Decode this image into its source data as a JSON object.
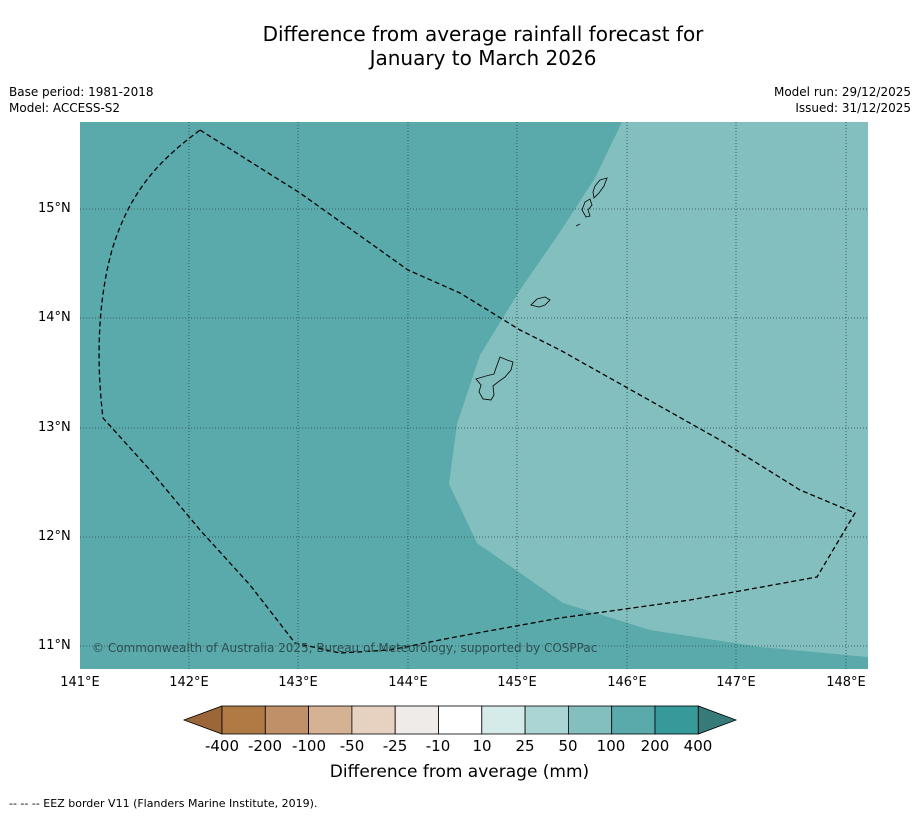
{
  "title": {
    "line1": "Difference from average rainfall forecast for",
    "line2": "January to March 2026"
  },
  "meta": {
    "base_period": "Base period: 1981-2018",
    "model": "Model: ACCESS-S2",
    "model_run": "Model run: 29/12/2025",
    "issued": "Issued: 31/12/2025"
  },
  "map": {
    "copyright": "© Commonwealth of Australia 2025, Bureau of Meteorology, supported by COSPPac",
    "lat_labels": [
      "15°N",
      "14°N",
      "13°N",
      "12°N",
      "11°N"
    ],
    "lon_labels": [
      "141°E",
      "142°E",
      "143°E",
      "144°E",
      "145°E",
      "146°E",
      "147°E",
      "148°E"
    ],
    "background_category": "100 to 200 mm",
    "east_category": "50 to 100 mm"
  },
  "colorbar": {
    "labels": [
      "-400",
      "-200",
      "-100",
      "-50",
      "-25",
      "-10",
      "10",
      "25",
      "50",
      "100",
      "200",
      "400"
    ],
    "colors": [
      "#9c6638",
      "#b07a45",
      "#c09168",
      "#d4b293",
      "#e7d1c0",
      "#eeebe8",
      "#ffffff",
      "#d5ebea",
      "#abd5d4",
      "#83bfbe",
      "#5aaaac",
      "#369a9b",
      "#377a7a"
    ],
    "title": "Difference from average (mm)"
  },
  "footer": {
    "legend": "--  --  -- EEZ border V11 (Flanders Marine Institute, 2019)."
  }
}
